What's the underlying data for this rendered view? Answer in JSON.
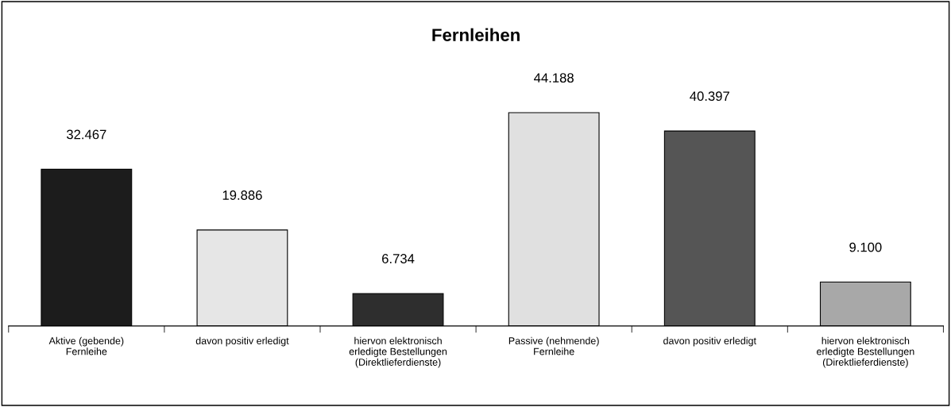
{
  "chart_data": {
    "type": "bar",
    "title": "Fernleihen",
    "categories": [
      "Aktive (gebende)\nFernleihe",
      "davon positiv erledigt",
      "hiervon elektronisch\nerledigte Bestellungen\n(Direktlieferdienste)",
      "Passive (nehmende)\nFernleihe",
      "davon positiv erledigt",
      "hiervon elektronisch\nerledigte Bestellungen\n(Direktlieferdienste)"
    ],
    "values": [
      32467,
      19886,
      6734,
      44188,
      40397,
      9100
    ],
    "value_labels": [
      "32.467",
      "19.886",
      "6.734",
      "44.188",
      "40.397",
      "9.100"
    ],
    "colors": [
      "#1c1c1c",
      "#e6e6e6",
      "#2e2e2e",
      "#e0e0e0",
      "#555555",
      "#a8a8a8"
    ],
    "grid": false,
    "legend": false
  }
}
